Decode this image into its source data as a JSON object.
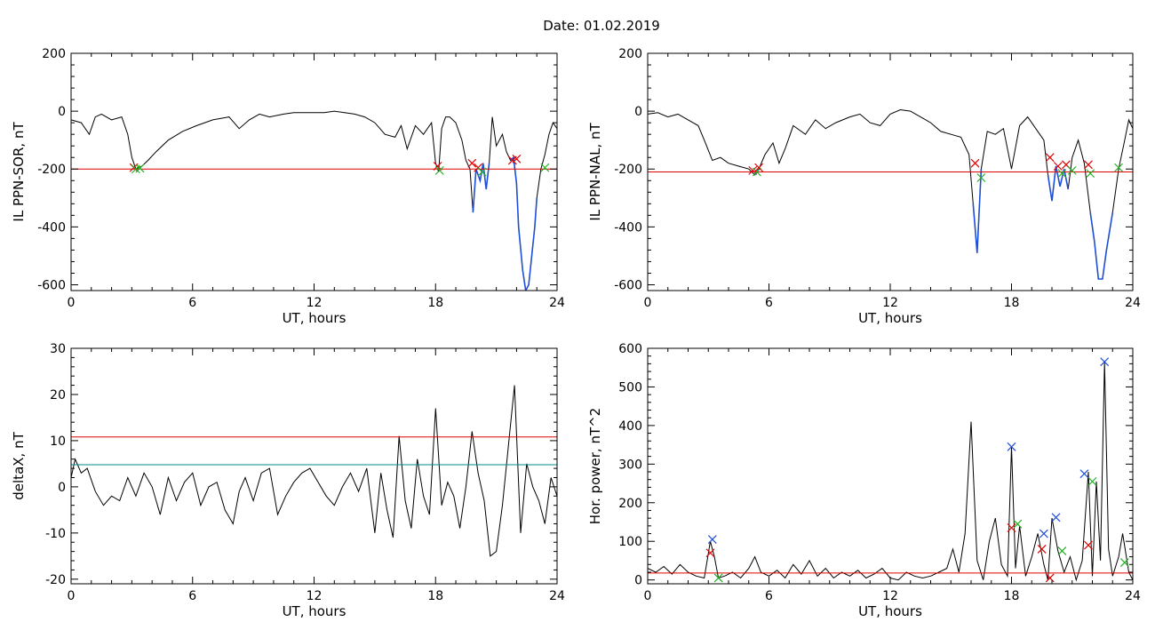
{
  "title": "Date:  01.02.2019",
  "colors": {
    "background": "#ffffff",
    "axes": "#000000",
    "data": "#000000",
    "threshold": "#e00000",
    "threshold_secondary": "#008b8b",
    "highlight": "#1f4fd6",
    "marker_red": "#e00000",
    "marker_green": "#22b022",
    "marker_blue": "#1f4fd6"
  },
  "chart_data": [
    {
      "id": "il-sor",
      "type": "line",
      "ylabel": "IL PPN-SOR, nT",
      "xlabel": "UT, hours",
      "xlim": [
        0,
        24
      ],
      "ylim": [
        -620,
        200
      ],
      "xticks": [
        "0",
        "6",
        "12",
        "18",
        "24"
      ],
      "xtick_values": [
        0,
        6,
        12,
        18,
        24
      ],
      "yticks": [
        "200",
        "0",
        "-200",
        "-400",
        "-600"
      ],
      "ytick_values": [
        200,
        0,
        -200,
        -400,
        -600
      ],
      "threshold": -200,
      "threshold_color": "#e00000",
      "grid": false,
      "x": [
        0,
        0.5,
        0.9,
        1.2,
        1.5,
        2.0,
        2.5,
        2.8,
        3.0,
        3.2,
        3.5,
        3.8,
        4.2,
        4.8,
        5.5,
        6.2,
        7.0,
        7.8,
        8.3,
        8.8,
        9.3,
        9.8,
        10.5,
        11.0,
        11.5,
        12.0,
        12.5,
        13.0,
        13.5,
        14.0,
        14.5,
        15.0,
        15.5,
        16.0,
        16.3,
        16.6,
        17.0,
        17.4,
        17.8,
        18.0,
        18.15,
        18.3,
        18.5,
        18.7,
        19.0,
        19.3,
        19.5,
        19.7,
        19.85,
        20.0,
        20.2,
        20.35,
        20.5,
        20.65,
        20.8,
        21.0,
        21.3,
        21.5,
        21.7,
        21.85,
        22.0,
        22.1,
        22.3,
        22.45,
        22.6,
        22.75,
        22.9,
        23.0,
        23.2,
        23.4,
        23.6,
        23.8,
        24.0
      ],
      "y": [
        -30,
        -40,
        -80,
        -20,
        -10,
        -30,
        -20,
        -80,
        -160,
        -200,
        -190,
        -170,
        -140,
        -100,
        -70,
        -50,
        -30,
        -20,
        -60,
        -30,
        -10,
        -20,
        -10,
        -5,
        -5,
        -5,
        -5,
        0,
        -5,
        -10,
        -20,
        -40,
        -80,
        -90,
        -50,
        -130,
        -50,
        -80,
        -40,
        -180,
        -210,
        -60,
        -20,
        -20,
        -40,
        -100,
        -170,
        -200,
        -350,
        -200,
        -240,
        -180,
        -270,
        -180,
        -20,
        -120,
        -80,
        -140,
        -170,
        -160,
        -250,
        -400,
        -550,
        -620,
        -600,
        -500,
        -400,
        -300,
        -200,
        -150,
        -80,
        -40,
        -60
      ],
      "highlight_segments": [
        [
          19.8,
          20.7
        ],
        [
          21.6,
          23.0
        ]
      ],
      "markers": [
        {
          "x": 3.1,
          "y": -195,
          "color": "#e00000"
        },
        {
          "x": 3.2,
          "y": -200,
          "color": "#22b022"
        },
        {
          "x": 3.4,
          "y": -197,
          "color": "#22b022"
        },
        {
          "x": 18.1,
          "y": -190,
          "color": "#e00000"
        },
        {
          "x": 18.2,
          "y": -205,
          "color": "#22b022"
        },
        {
          "x": 19.8,
          "y": -180,
          "color": "#e00000"
        },
        {
          "x": 20.1,
          "y": -195,
          "color": "#e00000"
        },
        {
          "x": 20.3,
          "y": -210,
          "color": "#22b022"
        },
        {
          "x": 21.8,
          "y": -170,
          "color": "#e00000"
        },
        {
          "x": 22.0,
          "y": -165,
          "color": "#e00000"
        },
        {
          "x": 23.4,
          "y": -195,
          "color": "#22b022"
        }
      ]
    },
    {
      "id": "il-nal",
      "type": "line",
      "ylabel": "IL PPN-NAL, nT",
      "xlabel": "UT, hours",
      "xlim": [
        0,
        24
      ],
      "ylim": [
        -620,
        200
      ],
      "xticks": [
        "0",
        "6",
        "12",
        "18",
        "24"
      ],
      "xtick_values": [
        0,
        6,
        12,
        18,
        24
      ],
      "yticks": [
        "200",
        "0",
        "-200",
        "-400",
        "-600"
      ],
      "ytick_values": [
        200,
        0,
        -200,
        -400,
        -600
      ],
      "threshold": -210,
      "threshold_color": "#e00000",
      "grid": false,
      "x": [
        0,
        0.5,
        1.0,
        1.5,
        2.0,
        2.5,
        2.8,
        3.2,
        3.6,
        4.0,
        4.5,
        5.0,
        5.3,
        5.5,
        5.8,
        6.2,
        6.5,
        6.8,
        7.2,
        7.8,
        8.3,
        8.8,
        9.3,
        10.0,
        10.5,
        11.0,
        11.5,
        12.0,
        12.5,
        13.0,
        13.5,
        14.0,
        14.5,
        15.0,
        15.5,
        15.9,
        16.1,
        16.3,
        16.5,
        16.8,
        17.2,
        17.6,
        18.0,
        18.4,
        18.8,
        19.2,
        19.6,
        19.8,
        20.0,
        20.2,
        20.4,
        20.6,
        20.8,
        21.0,
        21.3,
        21.6,
        21.9,
        22.1,
        22.3,
        22.5,
        22.7,
        23.0,
        23.3,
        23.6,
        23.8,
        24.0
      ],
      "y": [
        -10,
        -5,
        -20,
        -10,
        -30,
        -50,
        -100,
        -170,
        -160,
        -180,
        -190,
        -200,
        -220,
        -200,
        -150,
        -110,
        -180,
        -130,
        -50,
        -80,
        -30,
        -60,
        -40,
        -20,
        -10,
        -40,
        -50,
        -10,
        5,
        0,
        -20,
        -40,
        -70,
        -80,
        -90,
        -150,
        -320,
        -490,
        -200,
        -70,
        -80,
        -60,
        -200,
        -50,
        -20,
        -60,
        -100,
        -220,
        -310,
        -190,
        -260,
        -200,
        -270,
        -160,
        -100,
        -180,
        -350,
        -450,
        -580,
        -580,
        -480,
        -350,
        -200,
        -100,
        -30,
        -60
      ],
      "highlight_segments": [
        [
          5.2,
          5.7
        ],
        [
          16.0,
          16.6
        ],
        [
          19.8,
          20.9
        ],
        [
          21.8,
          23.2
        ]
      ],
      "markers": [
        {
          "x": 5.2,
          "y": -205,
          "color": "#e00000"
        },
        {
          "x": 5.4,
          "y": -210,
          "color": "#22b022"
        },
        {
          "x": 5.5,
          "y": -195,
          "color": "#e00000"
        },
        {
          "x": 16.2,
          "y": -180,
          "color": "#e00000"
        },
        {
          "x": 16.5,
          "y": -230,
          "color": "#22b022"
        },
        {
          "x": 19.9,
          "y": -160,
          "color": "#e00000"
        },
        {
          "x": 20.3,
          "y": -190,
          "color": "#e00000"
        },
        {
          "x": 20.5,
          "y": -215,
          "color": "#22b022"
        },
        {
          "x": 20.7,
          "y": -185,
          "color": "#e00000"
        },
        {
          "x": 21.0,
          "y": -205,
          "color": "#22b022"
        },
        {
          "x": 21.8,
          "y": -185,
          "color": "#e00000"
        },
        {
          "x": 21.9,
          "y": -215,
          "color": "#22b022"
        },
        {
          "x": 23.3,
          "y": -195,
          "color": "#22b022"
        }
      ]
    },
    {
      "id": "deltax",
      "type": "line",
      "ylabel": "deltaX, nT",
      "xlabel": "UT, hours",
      "xlim": [
        0,
        24
      ],
      "ylim": [
        -21,
        30
      ],
      "xticks": [
        "0",
        "6",
        "12",
        "18",
        "24"
      ],
      "xtick_values": [
        0,
        6,
        12,
        18,
        24
      ],
      "yticks": [
        "30",
        "20",
        "10",
        "0",
        "-10",
        "-20"
      ],
      "ytick_values": [
        30,
        20,
        10,
        0,
        -10,
        -20
      ],
      "threshold": 10.8,
      "threshold_color": "#e00000",
      "threshold_secondary": 4.8,
      "threshold_secondary_color": "#008b8b",
      "grid": false,
      "x": [
        0,
        0.2,
        0.5,
        0.8,
        1.2,
        1.6,
        2.0,
        2.4,
        2.8,
        3.2,
        3.6,
        4.0,
        4.4,
        4.8,
        5.2,
        5.6,
        6.0,
        6.4,
        6.8,
        7.2,
        7.6,
        8.0,
        8.3,
        8.6,
        9.0,
        9.4,
        9.8,
        10.2,
        10.6,
        11.0,
        11.4,
        11.8,
        12.2,
        12.6,
        13.0,
        13.4,
        13.8,
        14.2,
        14.6,
        15.0,
        15.3,
        15.6,
        15.9,
        16.2,
        16.5,
        16.8,
        17.1,
        17.4,
        17.7,
        18.0,
        18.3,
        18.6,
        18.9,
        19.2,
        19.5,
        19.8,
        20.1,
        20.4,
        20.7,
        21.0,
        21.3,
        21.6,
        21.9,
        22.2,
        22.5,
        22.8,
        23.1,
        23.4,
        23.7,
        24.0
      ],
      "y": [
        2,
        6,
        3,
        4,
        -1,
        -4,
        -2,
        -3,
        2,
        -2,
        3,
        0,
        -6,
        2,
        -3,
        1,
        3,
        -4,
        0,
        1,
        -5,
        -8,
        -1,
        2,
        -3,
        3,
        4,
        -6,
        -2,
        1,
        3,
        4,
        1,
        -2,
        -4,
        0,
        3,
        -1,
        4,
        -10,
        3,
        -5,
        -11,
        11,
        -3,
        -9,
        6,
        -2,
        -6,
        17,
        -4,
        1,
        -2,
        -9,
        0,
        12,
        3,
        -3,
        -15,
        -14,
        -4,
        9,
        22,
        -10,
        5,
        0,
        -3,
        -8,
        2,
        -2
      ],
      "highlight_segments": [],
      "markers": []
    },
    {
      "id": "power",
      "type": "line",
      "ylabel": "Hor. power, nT^2",
      "xlabel": "UT, hours",
      "xlim": [
        0,
        24
      ],
      "ylim": [
        -10,
        600
      ],
      "xticks": [
        "0",
        "6",
        "12",
        "18",
        "24"
      ],
      "xtick_values": [
        0,
        6,
        12,
        18,
        24
      ],
      "yticks": [
        "600",
        "500",
        "400",
        "300",
        "200",
        "100",
        "0"
      ],
      "ytick_values": [
        600,
        500,
        400,
        300,
        200,
        100,
        0
      ],
      "threshold": 18,
      "threshold_color": "#e00000",
      "grid": false,
      "x": [
        0,
        0.4,
        0.8,
        1.2,
        1.6,
        2.0,
        2.4,
        2.8,
        3.1,
        3.3,
        3.5,
        3.8,
        4.2,
        4.6,
        5.0,
        5.3,
        5.6,
        6.0,
        6.4,
        6.8,
        7.2,
        7.6,
        8.0,
        8.4,
        8.8,
        9.2,
        9.6,
        10.0,
        10.4,
        10.8,
        11.2,
        11.6,
        12.0,
        12.4,
        12.8,
        13.2,
        13.6,
        14.0,
        14.4,
        14.8,
        15.1,
        15.4,
        15.7,
        16.0,
        16.3,
        16.6,
        16.9,
        17.2,
        17.5,
        17.8,
        18.0,
        18.2,
        18.4,
        18.7,
        19.0,
        19.3,
        19.6,
        19.8,
        20.0,
        20.3,
        20.6,
        20.9,
        21.2,
        21.5,
        21.8,
        22.0,
        22.2,
        22.4,
        22.6,
        22.8,
        23.0,
        23.3,
        23.5,
        23.8,
        24.0
      ],
      "y": [
        30,
        20,
        35,
        15,
        40,
        20,
        10,
        5,
        100,
        60,
        5,
        10,
        20,
        5,
        30,
        60,
        20,
        10,
        25,
        5,
        40,
        15,
        50,
        10,
        30,
        5,
        20,
        10,
        25,
        5,
        15,
        30,
        5,
        0,
        20,
        10,
        5,
        10,
        20,
        30,
        80,
        20,
        120,
        410,
        50,
        0,
        100,
        160,
        40,
        10,
        345,
        30,
        140,
        10,
        60,
        120,
        40,
        0,
        160,
        75,
        20,
        60,
        0,
        50,
        280,
        10,
        255,
        50,
        565,
        80,
        10,
        60,
        120,
        20,
        0
      ],
      "highlight_segments": [],
      "markers": [
        {
          "x": 3.2,
          "y": 105,
          "color": "#1f4fd6"
        },
        {
          "x": 3.1,
          "y": 70,
          "color": "#e00000"
        },
        {
          "x": 3.5,
          "y": 5,
          "color": "#22b022"
        },
        {
          "x": 18.0,
          "y": 345,
          "color": "#1f4fd6"
        },
        {
          "x": 18.0,
          "y": 135,
          "color": "#e00000"
        },
        {
          "x": 18.3,
          "y": 145,
          "color": "#22b022"
        },
        {
          "x": 19.6,
          "y": 120,
          "color": "#1f4fd6"
        },
        {
          "x": 19.5,
          "y": 80,
          "color": "#e00000"
        },
        {
          "x": 19.9,
          "y": 5,
          "color": "#e00000"
        },
        {
          "x": 20.2,
          "y": 162,
          "color": "#1f4fd6"
        },
        {
          "x": 20.5,
          "y": 75,
          "color": "#22b022"
        },
        {
          "x": 21.6,
          "y": 275,
          "color": "#1f4fd6"
        },
        {
          "x": 21.8,
          "y": 90,
          "color": "#e00000"
        },
        {
          "x": 22.0,
          "y": 255,
          "color": "#22b022"
        },
        {
          "x": 22.6,
          "y": 565,
          "color": "#1f4fd6"
        },
        {
          "x": 23.6,
          "y": 45,
          "color": "#22b022"
        }
      ]
    }
  ]
}
